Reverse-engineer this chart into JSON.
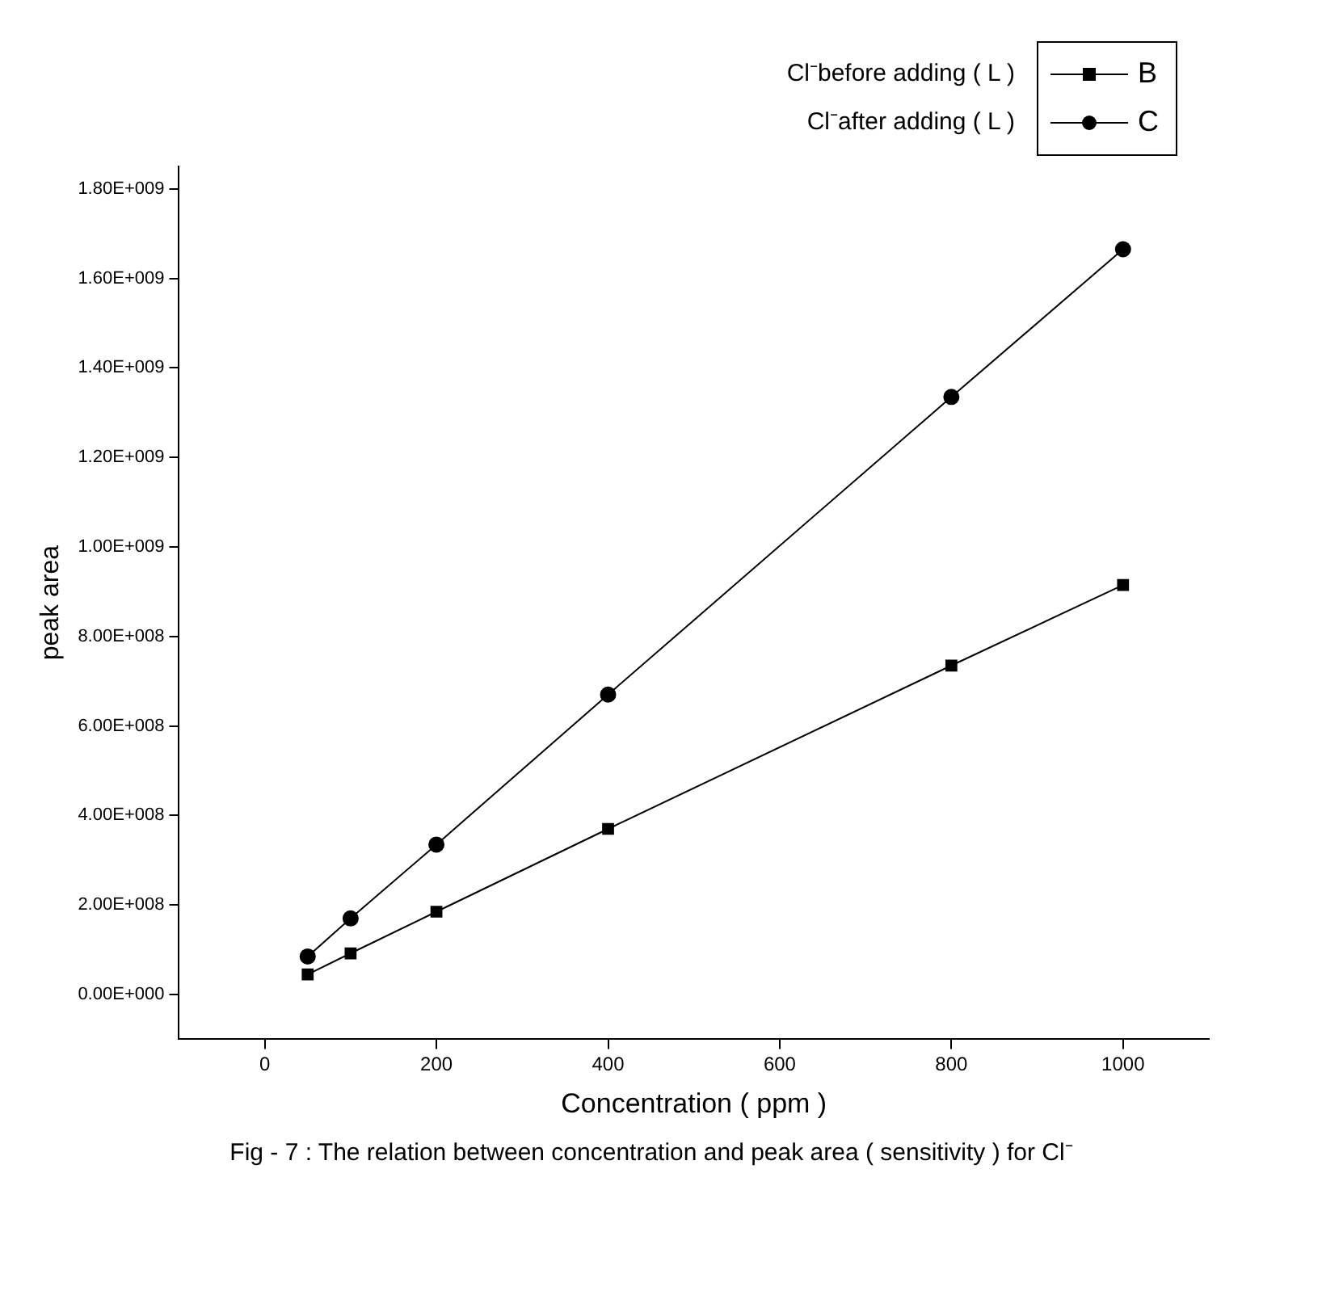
{
  "chart_data": {
    "type": "line",
    "xlabel": "Concentration ( ppm )",
    "ylabel": "peak area",
    "x": [
      50,
      100,
      200,
      400,
      800,
      1000
    ],
    "series": [
      {
        "name": "B",
        "color": "#000000",
        "marker": "square",
        "values": [
          45000000,
          92000000,
          185000000,
          370000000,
          735000000,
          915000000
        ]
      },
      {
        "name": "C",
        "color": "#000000",
        "marker": "circle",
        "values": [
          85000000,
          170000000,
          335000000,
          670000000,
          1335000000,
          1665000000
        ]
      }
    ],
    "xlim": [
      -100,
      1100
    ],
    "xticks": [
      0,
      200,
      400,
      600,
      800,
      1000
    ],
    "ylim": [
      -100000000,
      1850000000
    ],
    "yticks": [
      {
        "value": 0,
        "label": "0.00E+000"
      },
      {
        "value": 200000000,
        "label": "2.00E+008"
      },
      {
        "value": 400000000,
        "label": "4.00E+008"
      },
      {
        "value": 600000000,
        "label": "6.00E+008"
      },
      {
        "value": 800000000,
        "label": "8.00E+008"
      },
      {
        "value": 1000000000,
        "label": "1.00E+009"
      },
      {
        "value": 1200000000,
        "label": "1.20E+009"
      },
      {
        "value": 1400000000,
        "label": "1.40E+009"
      },
      {
        "value": 1600000000,
        "label": "1.60E+009"
      },
      {
        "value": 1800000000,
        "label": "1.80E+009"
      }
    ],
    "legend": "top right",
    "line_style": "solid",
    "annotations": [
      "Cl⁻before adding ( L )",
      "Cl⁻after adding ( L )",
      "Fig - 7 : The relation between concentration and peak area ( sensitivity ) for Cl⁻"
    ]
  }
}
